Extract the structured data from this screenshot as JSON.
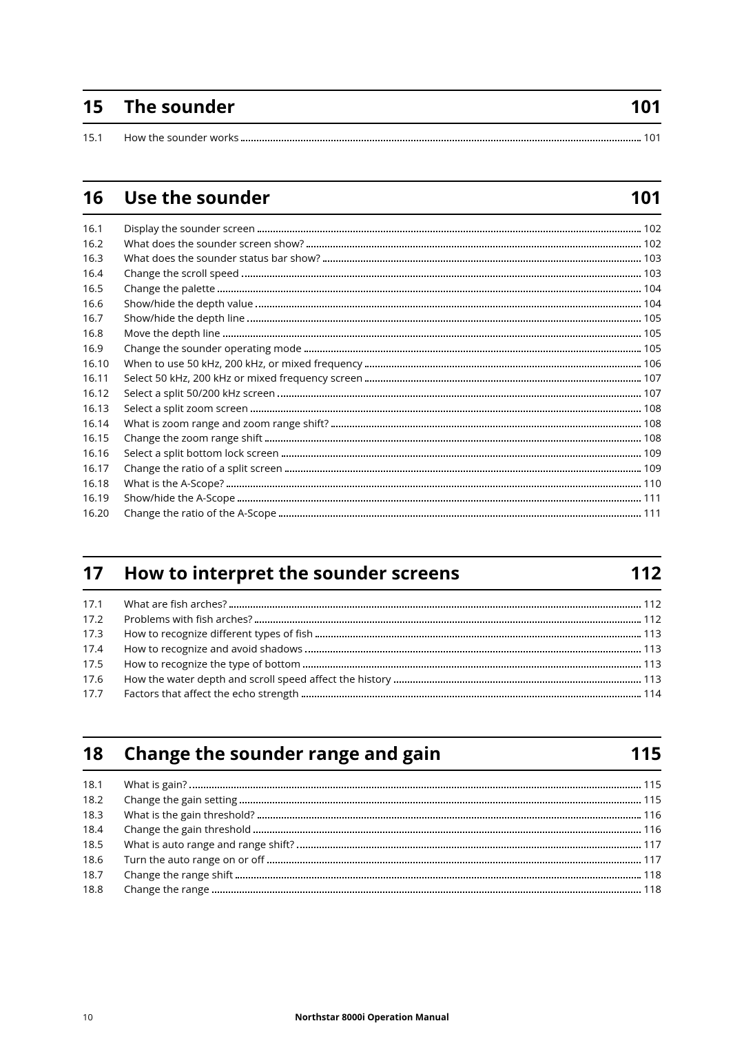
{
  "footer": {
    "page_number": "10",
    "manual_title": "Northstar 8000i Operation Manual"
  },
  "chapters": [
    {
      "num": "15",
      "title": "The sounder",
      "page": "101",
      "entries": [
        {
          "num": "15.1",
          "title": "How the sounder works",
          "page": "101"
        }
      ]
    },
    {
      "num": "16",
      "title": "Use the sounder",
      "page": "101",
      "entries": [
        {
          "num": "16.1",
          "title": "Display the sounder screen",
          "page": "102"
        },
        {
          "num": "16.2",
          "title": "What does the sounder screen show?",
          "page": "102"
        },
        {
          "num": "16.3",
          "title": "What does the sounder status bar show?",
          "page": "103"
        },
        {
          "num": "16.4",
          "title": "Change the scroll speed",
          "page": "103"
        },
        {
          "num": "16.5",
          "title": "Change the palette",
          "page": "104"
        },
        {
          "num": "16.6",
          "title": "Show/hide the depth value",
          "page": "104"
        },
        {
          "num": "16.7",
          "title": "Show/hide the depth line",
          "page": "105"
        },
        {
          "num": "16.8",
          "title": "Move the depth line",
          "page": "105"
        },
        {
          "num": "16.9",
          "title": "Change the sounder operating mode",
          "page": "105"
        },
        {
          "num": "16.10",
          "title": "When to use 50 kHz, 200 kHz, or mixed frequency",
          "page": "106"
        },
        {
          "num": "16.11",
          "title": "Select 50 kHz, 200 kHz or mixed frequency screen",
          "page": "107"
        },
        {
          "num": "16.12",
          "title": "Select a split 50/200 kHz screen",
          "page": "107"
        },
        {
          "num": "16.13",
          "title": "Select a split zoom screen",
          "page": "108"
        },
        {
          "num": "16.14",
          "title": "What is zoom range and zoom range shift?",
          "page": "108"
        },
        {
          "num": "16.15",
          "title": "Change the zoom range shift",
          "page": "108"
        },
        {
          "num": "16.16",
          "title": "Select a split bottom lock screen",
          "page": "109"
        },
        {
          "num": "16.17",
          "title": "Change the ratio of a split screen",
          "page": "109"
        },
        {
          "num": "16.18",
          "title": "What is the A-Scope?",
          "page": "110"
        },
        {
          "num": "16.19",
          "title": "Show/hide the A-Scope",
          "page": "111"
        },
        {
          "num": "16.20",
          "title": "Change the ratio of the A-Scope",
          "page": "111"
        }
      ]
    },
    {
      "num": "17",
      "title": "How to interpret the sounder screens",
      "page": "112",
      "entries": [
        {
          "num": "17.1",
          "title": "What are fish arches?",
          "page": "112"
        },
        {
          "num": "17.2",
          "title": "Problems with fish arches?",
          "page": "112"
        },
        {
          "num": "17.3",
          "title": "How to recognize different types of fish",
          "page": "113"
        },
        {
          "num": "17.4",
          "title": "How to recognize and avoid shadows",
          "page": "113"
        },
        {
          "num": "17.5",
          "title": "How to recognize the type of bottom",
          "page": "113"
        },
        {
          "num": "17.6",
          "title": "How the water depth and scroll speed affect the history",
          "page": "113"
        },
        {
          "num": "17.7",
          "title": "Factors that affect the echo strength",
          "page": "114"
        }
      ]
    },
    {
      "num": "18",
      "title": "Change the sounder range and gain",
      "page": "115",
      "entries": [
        {
          "num": "18.1",
          "title": "What is gain?",
          "page": "115"
        },
        {
          "num": "18.2",
          "title": "Change the gain setting",
          "page": "115"
        },
        {
          "num": "18.3",
          "title": "What is the gain threshold?",
          "page": "116"
        },
        {
          "num": "18.4",
          "title": "Change the gain threshold",
          "page": "116"
        },
        {
          "num": "18.5",
          "title": "What is auto range and range shift?",
          "page": "117"
        },
        {
          "num": "18.6",
          "title": "Turn the auto range on or off",
          "page": "117"
        },
        {
          "num": "18.7",
          "title": "Change the range shift",
          "page": "118"
        },
        {
          "num": "18.8",
          "title": "Change the range",
          "page": "118"
        }
      ]
    }
  ]
}
